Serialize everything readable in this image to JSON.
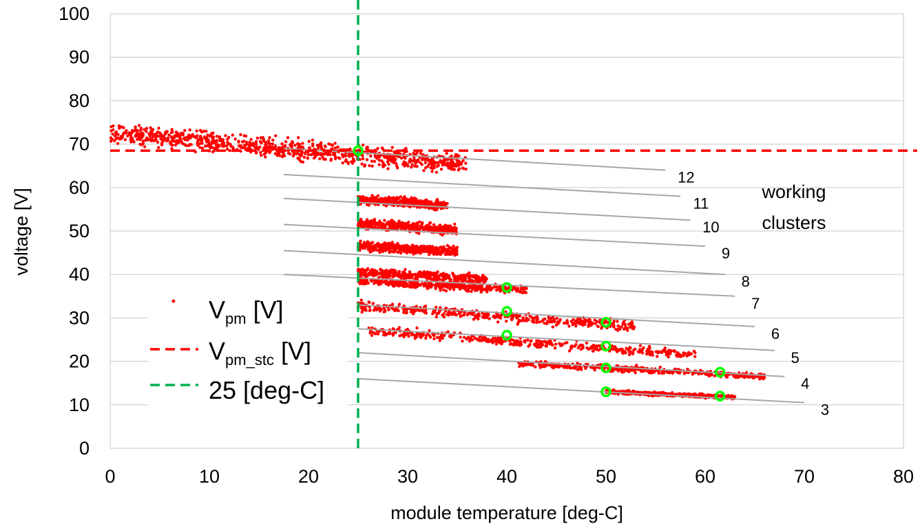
{
  "chart_data": {
    "type": "scatter",
    "xlabel": "module temperature [deg-C]",
    "ylabel": "voltage [V]",
    "xlim": [
      0,
      80
    ],
    "ylim": [
      0,
      100
    ],
    "xticks": [
      "0",
      "10",
      "20",
      "30",
      "40",
      "50",
      "60",
      "70",
      "80"
    ],
    "yticks": [
      "0",
      "10",
      "20",
      "30",
      "40",
      "50",
      "60",
      "70",
      "80",
      "90",
      "100"
    ],
    "grid": "horizontal",
    "legend_position": "bottom-left",
    "legend": {
      "vpm": {
        "main": "V",
        "sub": "pm",
        "rest": " [V]"
      },
      "vpm_stc": {
        "main": "V",
        "sub": "pm_stc",
        "rest": " [V]"
      },
      "t25": {
        "text": "25 [deg-C]"
      }
    },
    "annotation": [
      "working",
      "clusters"
    ],
    "reference_lines": {
      "vpm_stc": 68.5,
      "temperature_stc": 25
    },
    "clusters": [
      {
        "label": "12",
        "x1": 17.5,
        "y1": 69,
        "x2": 56,
        "y2": 64,
        "xmin": 0,
        "xmax": 36,
        "ymid_at_x0": 72.5,
        "slope": -0.2,
        "spread": 3.2
      },
      {
        "label": "11",
        "x1": 17.5,
        "y1": 63,
        "x2": 57.5,
        "y2": 58,
        "xmin": 25,
        "xmax": 34,
        "ymid_at_x0": 61,
        "slope": -0.15,
        "spread": 1.6
      },
      {
        "label": "10",
        "x1": 17.5,
        "y1": 57.5,
        "x2": 58.5,
        "y2": 52.5,
        "xmin": 25,
        "xmax": 35,
        "ymid_at_x0": 55.5,
        "slope": -0.15,
        "spread": 1.6
      },
      {
        "label": "9",
        "x1": 17.5,
        "y1": 51.5,
        "x2": 60,
        "y2": 46.5,
        "xmin": 25,
        "xmax": 35,
        "ymid_at_x0": 49.5,
        "slope": -0.12,
        "spread": 1.5
      },
      {
        "label": "8",
        "x1": 17.5,
        "y1": 45.5,
        "x2": 62,
        "y2": 40,
        "xmin": 25,
        "xmax": 38,
        "ymid_at_x0": 43.5,
        "slope": -0.12,
        "spread": 1.5
      },
      {
        "label": "7",
        "x1": 17.5,
        "y1": 40,
        "x2": 63,
        "y2": 35,
        "xmin": 25,
        "xmax": 42,
        "ymid_at_x0": 41.5,
        "slope": -0.12,
        "spread": 1.4
      },
      {
        "label": "6",
        "x1": 25,
        "y1": 33,
        "x2": 65,
        "y2": 28,
        "xmin": 25,
        "xmax": 53,
        "ymid_at_x0": 37,
        "slope": -0.17,
        "spread": 1.6
      },
      {
        "label": "5",
        "x1": 25,
        "y1": 27.5,
        "x2": 67,
        "y2": 22.5,
        "xmin": 26,
        "xmax": 59,
        "ymid_at_x0": 31.5,
        "slope": -0.17,
        "spread": 1.5
      },
      {
        "label": "4",
        "x1": 25,
        "y1": 22,
        "x2": 68,
        "y2": 16.5,
        "xmin": 41,
        "xmax": 66,
        "ymid_at_x0": 24.5,
        "slope": -0.12,
        "spread": 1.0
      },
      {
        "label": "3",
        "x1": 25,
        "y1": 16,
        "x2": 70,
        "y2": 10.5,
        "xmin": 50,
        "xmax": 63,
        "ymid_at_x0": 18,
        "slope": -0.1,
        "spread": 0.6
      }
    ],
    "operating_points": [
      {
        "x": 25,
        "y": 68.5
      },
      {
        "x": 40,
        "y": 37
      },
      {
        "x": 40,
        "y": 31.5
      },
      {
        "x": 40,
        "y": 26
      },
      {
        "x": 50,
        "y": 29
      },
      {
        "x": 50,
        "y": 23.5
      },
      {
        "x": 50,
        "y": 18.5
      },
      {
        "x": 50,
        "y": 13
      },
      {
        "x": 61.5,
        "y": 17.5
      },
      {
        "x": 61.5,
        "y": 12
      }
    ],
    "colors": {
      "scatter": "#ff0000",
      "stc_line": "#ff0000",
      "temp_line": "#00b050",
      "cluster_lines": "#a6a6a6",
      "points": "#00ff00",
      "grid": "#d9d9d9"
    }
  }
}
